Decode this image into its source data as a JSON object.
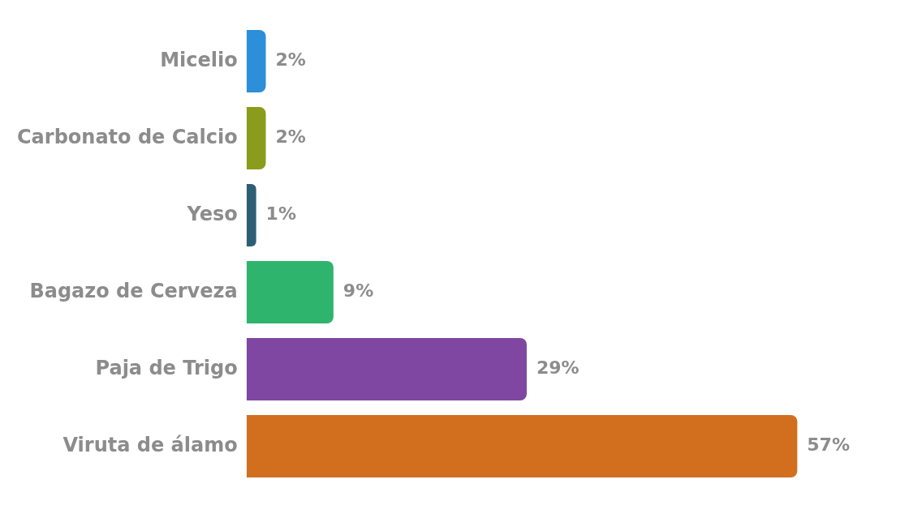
{
  "chart_data": {
    "type": "bar",
    "orientation": "horizontal",
    "categories": [
      "Micelio",
      "Carbonato de Calcio",
      "Yeso",
      "Bagazo de Cerveza",
      "Paja de Trigo",
      "Viruta de álamo"
    ],
    "values": [
      2,
      2,
      1,
      9,
      29,
      57
    ],
    "colors": [
      "#2b8fd9",
      "#8a9c1c",
      "#2d5f74",
      "#2fb46e",
      "#7f47a1",
      "#d16f1f"
    ],
    "data_labels": true,
    "value_labels": [
      "2%",
      "2%",
      "1%",
      "9%",
      "29%",
      "57%"
    ]
  }
}
